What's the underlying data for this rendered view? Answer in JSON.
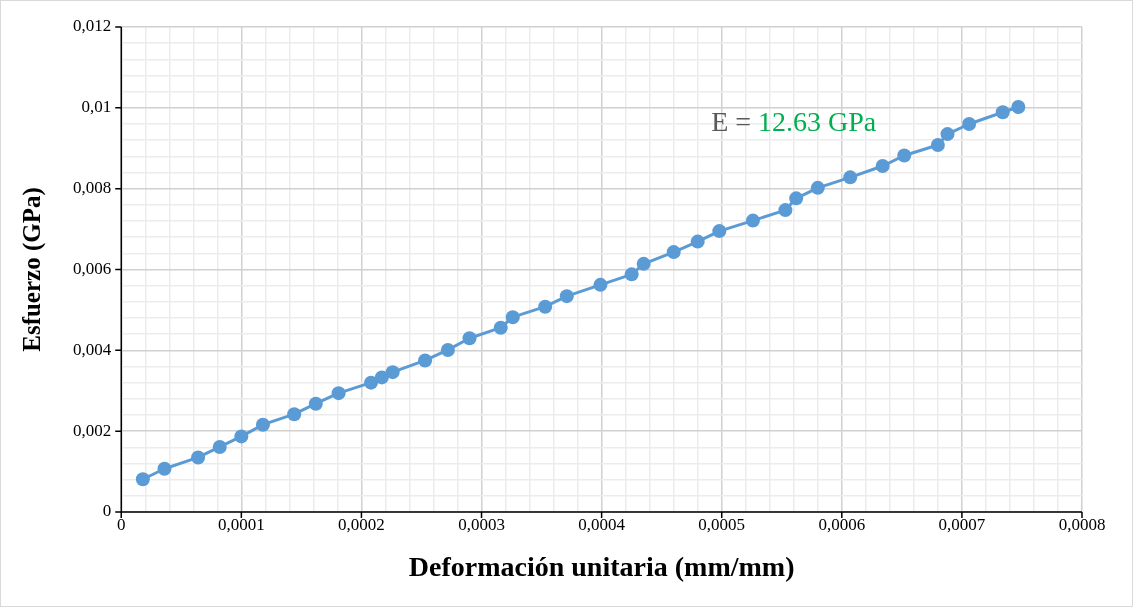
{
  "chart_data": {
    "type": "line",
    "xlabel": "Deformación unitaria (mm/mm)",
    "ylabel": "Esfuerzo (GPa)",
    "annotations": [
      "E = 12.63 GPa"
    ],
    "x": [
      1.8e-05,
      3.6e-05,
      6.4e-05,
      8.2e-05,
      0.0001,
      0.000118,
      0.000144,
      0.000162,
      0.000181,
      0.000208,
      0.000217,
      0.000226,
      0.000253,
      0.000272,
      0.00029,
      0.000316,
      0.000326,
      0.000353,
      0.000371,
      0.000399,
      0.000425,
      0.000435,
      0.00046,
      0.00048,
      0.000498,
      0.000526,
      0.000553,
      0.000562,
      0.00058,
      0.000607,
      0.000634,
      0.000652,
      0.00068,
      0.000688,
      0.000706,
      0.000734,
      0.000747
    ],
    "series": [
      {
        "color": "#5b9bd5",
        "values": [
          0.00081,
          0.00107,
          0.00135,
          0.00161,
          0.00187,
          0.00216,
          0.00242,
          0.00268,
          0.00294,
          0.0032,
          0.00333,
          0.00346,
          0.00375,
          0.00401,
          0.0043,
          0.00456,
          0.00482,
          0.00508,
          0.00534,
          0.00562,
          0.00588,
          0.00614,
          0.00643,
          0.00669,
          0.00695,
          0.00721,
          0.00747,
          0.00776,
          0.00802,
          0.00828,
          0.00856,
          0.00882,
          0.00908,
          0.00935,
          0.0096,
          0.00989,
          0.01002
        ]
      }
    ],
    "marker": "circle",
    "line_style": "solid",
    "grid": true,
    "legend": false,
    "xlim": [
      0,
      0.0008
    ],
    "ylim": [
      0,
      0.012
    ],
    "xticks": [
      0,
      {
        "value": 2e-05,
        "label": null
      },
      {
        "value": 4e-05,
        "label": null
      },
      {
        "value": 6e-05,
        "label": null
      },
      {
        "value": 8e-05,
        "label": null
      },
      {
        "value": 0.0001,
        "label": "0,0001"
      },
      {
        "value": 0.00012,
        "label": null
      },
      {
        "value": 0.00014,
        "label": null
      },
      {
        "value": 0.00016,
        "label": null
      },
      {
        "value": 0.00018,
        "label": null
      },
      {
        "value": 0.0002,
        "label": "0,0002"
      },
      {
        "value": 0.00022,
        "label": null
      },
      {
        "value": 0.00024,
        "label": null
      },
      {
        "value": 0.00026,
        "label": null
      },
      {
        "value": 0.00028,
        "label": null
      },
      {
        "value": 0.0003,
        "label": "0,0003"
      },
      {
        "value": 0.00032,
        "label": null
      },
      {
        "value": 0.00034,
        "label": null
      },
      {
        "value": 0.00036,
        "label": null
      },
      {
        "value": 0.00038,
        "label": null
      },
      {
        "value": 0.0004,
        "label": "0,0004"
      },
      {
        "value": 0.00042,
        "label": null
      },
      {
        "value": 0.00044,
        "label": null
      },
      {
        "value": 0.00046,
        "label": null
      },
      {
        "value": 0.00048,
        "label": null
      },
      {
        "value": 0.0005,
        "label": "0,0005"
      },
      {
        "value": 0.00052,
        "label": null
      },
      {
        "value": 0.00054,
        "label": null
      },
      {
        "value": 0.00056,
        "label": null
      },
      {
        "value": 0.00058,
        "label": null
      },
      {
        "value": 0.0006,
        "label": "0,0006"
      },
      {
        "value": 0.00062,
        "label": null
      },
      {
        "value": 0.00064,
        "label": null
      },
      {
        "value": 0.00066,
        "label": null
      },
      {
        "value": 0.00068,
        "label": null
      },
      {
        "value": 0.0007,
        "label": "0,0007"
      },
      {
        "value": 0.00072,
        "label": null
      },
      {
        "value": 0.00074,
        "label": null
      },
      {
        "value": 0.00076,
        "label": null
      },
      {
        "value": 0.00078,
        "label": null
      },
      {
        "value": 0.0008,
        "label": "0,0008"
      }
    ],
    "yticks": [
      0,
      {
        "value": 0.0004,
        "label": null
      },
      {
        "value": 0.0008,
        "label": null
      },
      {
        "value": 0.0012,
        "label": null
      },
      {
        "value": 0.0016,
        "label": null
      },
      {
        "value": 0.002,
        "label": "0,002"
      },
      {
        "value": 0.0024,
        "label": null
      },
      {
        "value": 0.0028,
        "label": null
      },
      {
        "value": 0.0032,
        "label": null
      },
      {
        "value": 0.0036,
        "label": null
      },
      {
        "value": 0.004,
        "label": "0,004"
      },
      {
        "value": 0.0044,
        "label": null
      },
      {
        "value": 0.0048,
        "label": null
      },
      {
        "value": 0.0052,
        "label": null
      },
      {
        "value": 0.0056,
        "label": null
      },
      {
        "value": 0.006,
        "label": "0,006"
      },
      {
        "value": 0.0064,
        "label": null
      },
      {
        "value": 0.0068,
        "label": null
      },
      {
        "value": 0.0072,
        "label": null
      },
      {
        "value": 0.0076,
        "label": null
      },
      {
        "value": 0.008,
        "label": "0,008"
      },
      {
        "value": 0.0084,
        "label": null
      },
      {
        "value": 0.0088,
        "label": null
      },
      {
        "value": 0.0092,
        "label": null
      },
      {
        "value": 0.0096,
        "label": null
      },
      {
        "value": 0.01,
        "label": "0,01"
      },
      {
        "value": 0.0104,
        "label": null
      },
      {
        "value": 0.0108,
        "label": null
      },
      {
        "value": 0.0112,
        "label": null
      },
      {
        "value": 0.0116,
        "label": null
      },
      {
        "value": 0.012,
        "label": "0,012"
      }
    ]
  }
}
